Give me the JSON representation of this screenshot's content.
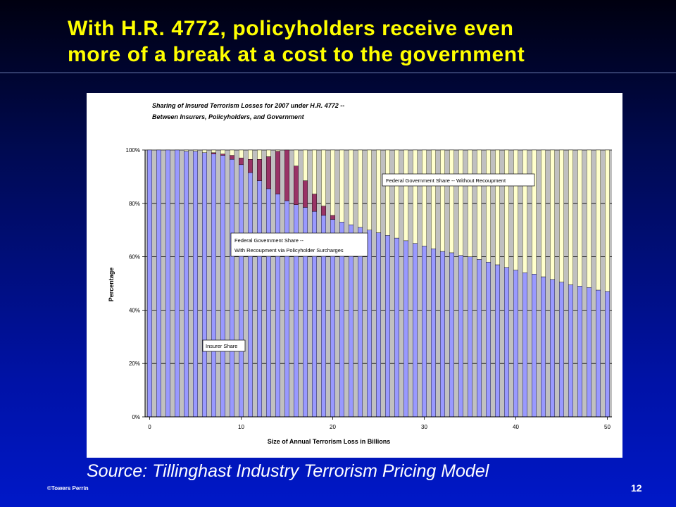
{
  "slide": {
    "title_line1": "With H.R. 4772, policyholders receive even",
    "title_line2": "more of a break at a cost to the government",
    "source": "Source: Tillinghast Industry Terrorism Pricing Model",
    "copyright": "©Towers Perrin",
    "page_number": "12"
  },
  "colors": {
    "insurer": "#9999ff",
    "gov_recoup": "#993366",
    "gov_no_recoup": "#ffffcc",
    "plot_bg": "#c0c0c0",
    "title": "#ffff00"
  },
  "chart_data": {
    "type": "bar",
    "stacked": true,
    "title_line1": "Sharing of Insured Terrorism Losses for 2007 under H.R. 4772 --",
    "title_line2": "Between Insurers, Policyholders, and Government",
    "xlabel": "Size of Annual Terrorism Loss in Billions",
    "ylabel": "Percentage",
    "xlim": [
      0,
      50
    ],
    "ylim": [
      0,
      100
    ],
    "x_ticks": [
      "0",
      "10",
      "20",
      "30",
      "40",
      "50"
    ],
    "y_ticks": [
      "0%",
      "20%",
      "40%",
      "60%",
      "80%",
      "100%"
    ],
    "grid": true,
    "x": [
      0,
      1,
      2,
      3,
      4,
      5,
      6,
      7,
      8,
      9,
      10,
      11,
      12,
      13,
      14,
      15,
      16,
      17,
      18,
      19,
      20,
      21,
      22,
      23,
      24,
      25,
      26,
      27,
      28,
      29,
      30,
      31,
      32,
      33,
      34,
      35,
      36,
      37,
      38,
      39,
      40,
      41,
      42,
      43,
      44,
      45,
      46,
      47,
      48,
      49,
      50
    ],
    "series": [
      {
        "name": "Insurer Share",
        "color": "#9999ff",
        "values": [
          100,
          100,
          100,
          100,
          99.5,
          99.5,
          99,
          98.5,
          98,
          96.5,
          94.5,
          91.5,
          88.5,
          85.5,
          83.5,
          81,
          79.5,
          78.5,
          77,
          75.5,
          74,
          73,
          72,
          71,
          70,
          69,
          68,
          67,
          66,
          65,
          64,
          63,
          62,
          61.5,
          60.5,
          60,
          59,
          58,
          57,
          56,
          55,
          54,
          53.5,
          52.5,
          51.5,
          50.5,
          49.5,
          49,
          48.5,
          47.5,
          47
        ]
      },
      {
        "name": "Federal Government Share -- With Recoupment via Policyholder Surcharges",
        "color": "#993366",
        "values": [
          0,
          0,
          0,
          0,
          0,
          0,
          0,
          0.5,
          0.5,
          1.5,
          2.5,
          5,
          8,
          12,
          16,
          19,
          14.5,
          10,
          6.5,
          3.5,
          1.5,
          0,
          0,
          0,
          0,
          0,
          0,
          0,
          0,
          0,
          0,
          0,
          0,
          0,
          0,
          0,
          0,
          0,
          0,
          0,
          0,
          0,
          0,
          0,
          0,
          0,
          0,
          0,
          0,
          0,
          0
        ]
      },
      {
        "name": "Federal Government Share -- Without Recoupment",
        "color": "#ffffcc",
        "values": [
          0,
          0,
          0,
          0,
          0.5,
          0.5,
          1,
          1,
          1.5,
          2,
          3,
          3.5,
          3.5,
          2.5,
          0.5,
          0,
          6,
          11.5,
          16.5,
          21,
          24.5,
          27,
          28,
          29,
          30,
          31,
          32,
          33,
          34,
          35,
          36,
          37,
          38,
          38.5,
          39.5,
          40,
          41,
          42,
          43,
          44,
          45,
          46,
          46.5,
          47.5,
          48.5,
          49.5,
          50.5,
          51,
          51.5,
          52.5,
          53
        ]
      }
    ],
    "annotations": [
      {
        "text_lines": [
          "Federal Government Share -- Without Recoupment"
        ],
        "anchor": "upper-right"
      },
      {
        "text_lines": [
          "Federal Government Share --",
          "With Recoupment via Policyholder Surcharges"
        ],
        "anchor": "middle"
      },
      {
        "text_lines": [
          "Insurer Share"
        ],
        "anchor": "lower-left"
      }
    ]
  }
}
